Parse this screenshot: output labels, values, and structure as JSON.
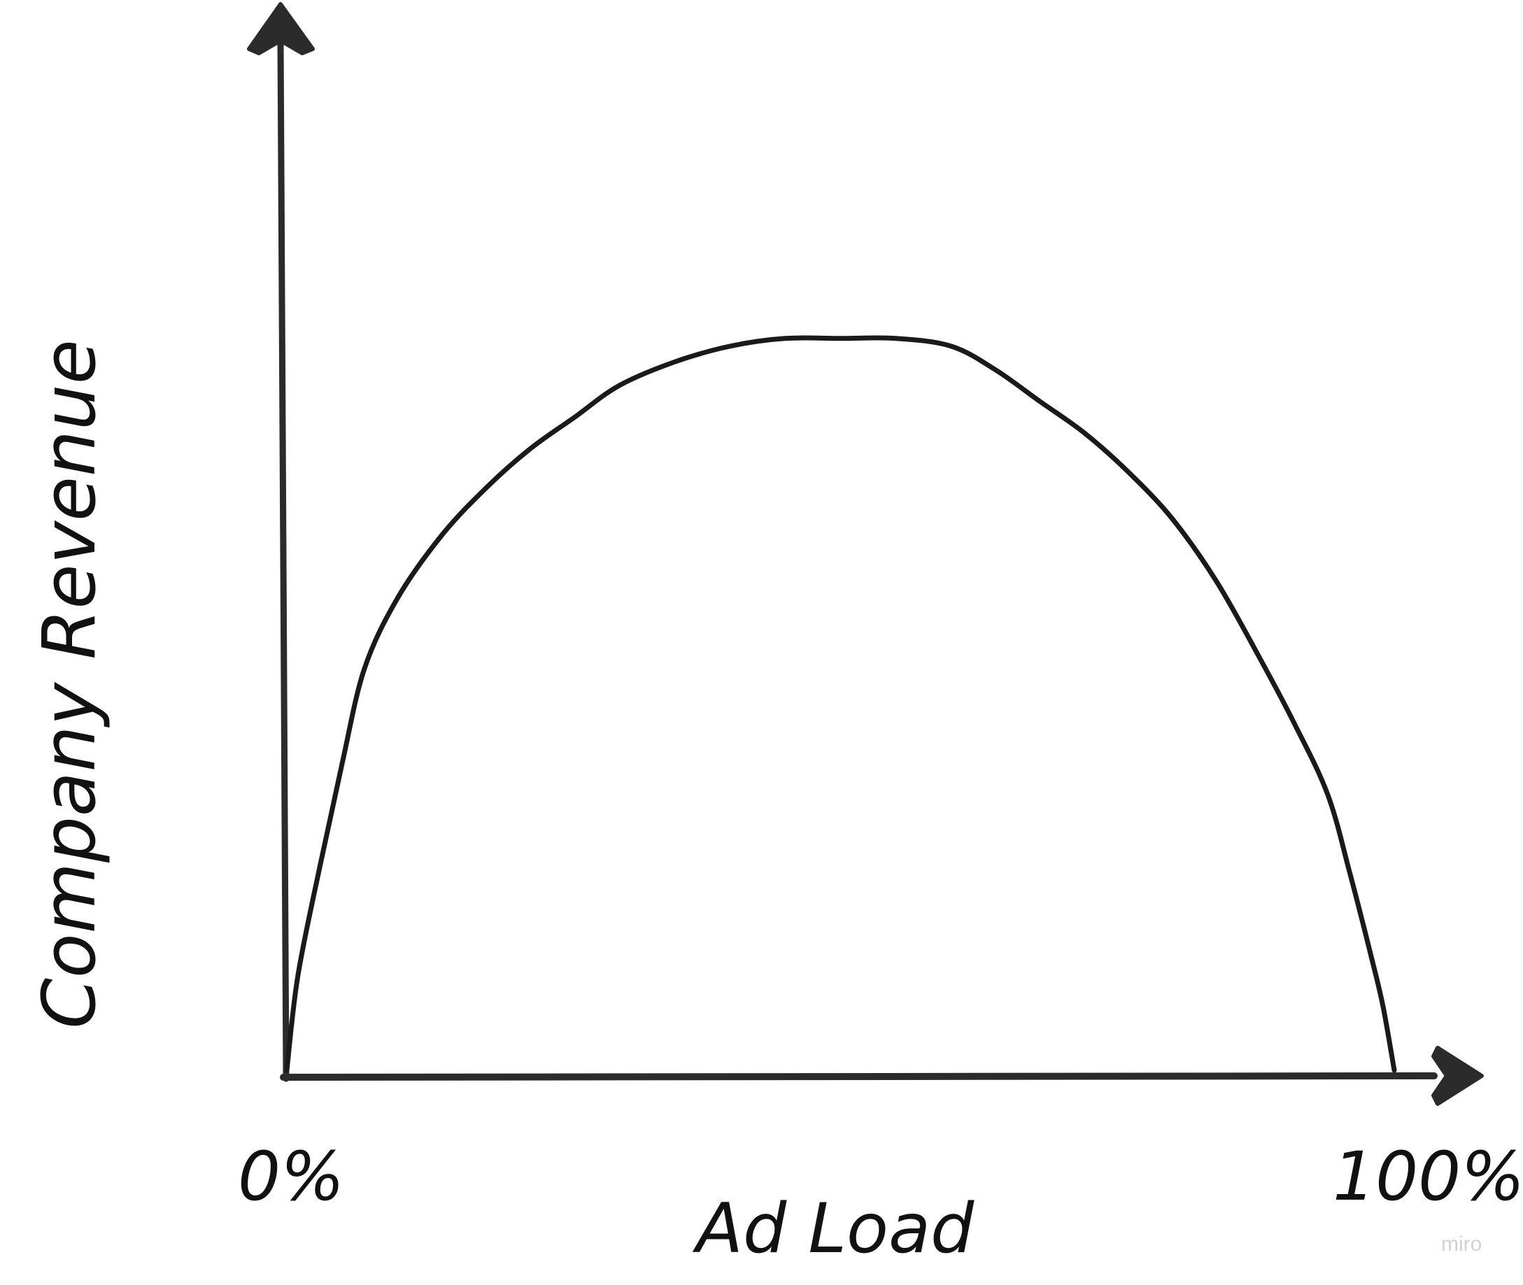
{
  "chart_data": {
    "type": "line",
    "title": "",
    "xlabel": "Ad Load",
    "ylabel": "Company Revenue",
    "x_ticks": [
      "0%",
      "100%"
    ],
    "xlim": [
      0,
      100
    ],
    "ylim": [
      0,
      100
    ],
    "grid": false,
    "legend": "none",
    "series": [
      {
        "x": [
          0,
          1,
          3,
          5,
          7,
          10,
          14,
          18,
          22,
          26,
          30,
          35,
          40,
          45,
          50,
          55,
          60,
          64,
          68,
          72,
          76,
          80,
          84,
          88,
          91,
          94,
          96,
          98,
          99,
          100
        ],
        "y": [
          0,
          12,
          26,
          39,
          51,
          60,
          68,
          74,
          79,
          83,
          87,
          90,
          92,
          93,
          93,
          93,
          92,
          89,
          85,
          81,
          76,
          70,
          62,
          52,
          44,
          35,
          25,
          14,
          8,
          0
        ]
      }
    ]
  },
  "colors": {
    "ink": "#1a1a1a",
    "axis": "#2b2b2b",
    "background": "#ffffff",
    "watermark": "#cfd3d8"
  },
  "watermark": "miro"
}
